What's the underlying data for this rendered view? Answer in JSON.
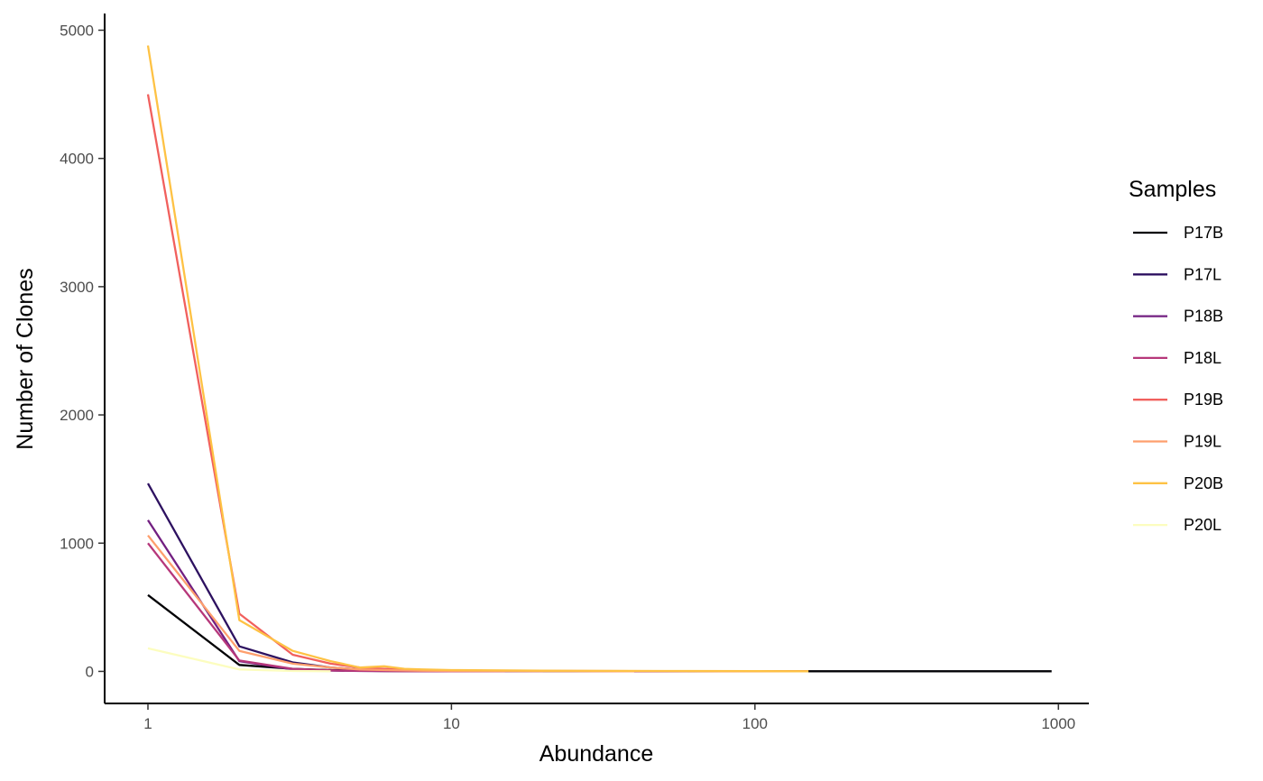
{
  "chart_data": {
    "type": "line",
    "xlabel": "Abundance",
    "ylabel": "Number of Clones",
    "x_scale": "log10",
    "xlim": [
      0.72,
      1260
    ],
    "ylim": [
      -250,
      5130
    ],
    "x_ticks": [
      1,
      10,
      100,
      1000
    ],
    "x_tick_labels": [
      "1",
      "10",
      "100",
      "1000"
    ],
    "y_ticks": [
      0,
      1000,
      2000,
      3000,
      4000,
      5000
    ],
    "y_tick_labels": [
      "0",
      "1000",
      "2000",
      "3000",
      "4000",
      "5000"
    ],
    "grid": false,
    "legend": {
      "title": "Samples",
      "position": "right"
    },
    "series": [
      {
        "name": "P17B",
        "color": "#000004",
        "points": [
          [
            1,
            595
          ],
          [
            2,
            50
          ],
          [
            3,
            20
          ],
          [
            4,
            10
          ],
          [
            5,
            5
          ],
          [
            6,
            3
          ],
          [
            8,
            2
          ],
          [
            10,
            1
          ],
          [
            20,
            1
          ],
          [
            50,
            1
          ],
          [
            100,
            1
          ],
          [
            200,
            1
          ],
          [
            500,
            1
          ],
          [
            950,
            1
          ]
        ]
      },
      {
        "name": "P17L",
        "color": "#2D1160",
        "points": [
          [
            1,
            1465
          ],
          [
            2,
            195
          ],
          [
            3,
            70
          ],
          [
            4,
            30
          ],
          [
            5,
            15
          ],
          [
            6,
            10
          ],
          [
            8,
            5
          ],
          [
            10,
            3
          ],
          [
            20,
            2
          ],
          [
            40,
            1
          ],
          [
            60,
            1
          ]
        ]
      },
      {
        "name": "P18B",
        "color": "#721F81",
        "points": [
          [
            1,
            1180
          ],
          [
            2,
            80
          ],
          [
            3,
            15
          ],
          [
            4,
            6
          ],
          [
            5,
            3
          ],
          [
            7,
            2
          ],
          [
            10,
            1
          ],
          [
            20,
            1
          ]
        ]
      },
      {
        "name": "P18L",
        "color": "#B6377A",
        "points": [
          [
            1,
            1000
          ],
          [
            2,
            85
          ],
          [
            3,
            20
          ],
          [
            4,
            8
          ],
          [
            5,
            4
          ],
          [
            7,
            2
          ],
          [
            10,
            1
          ],
          [
            15,
            1
          ]
        ]
      },
      {
        "name": "P19B",
        "color": "#F1605D",
        "points": [
          [
            1,
            4500
          ],
          [
            2,
            450
          ],
          [
            3,
            130
          ],
          [
            4,
            60
          ],
          [
            5,
            30
          ],
          [
            6,
            20
          ],
          [
            7,
            15
          ],
          [
            8,
            10
          ],
          [
            10,
            7
          ],
          [
            20,
            4
          ],
          [
            40,
            2
          ],
          [
            80,
            1
          ],
          [
            150,
            1
          ]
        ]
      },
      {
        "name": "P19L",
        "color": "#FE9F6D",
        "points": [
          [
            1,
            1060
          ],
          [
            2,
            160
          ],
          [
            3,
            60
          ],
          [
            4,
            30
          ],
          [
            5,
            15
          ],
          [
            6,
            10
          ],
          [
            8,
            5
          ],
          [
            10,
            3
          ],
          [
            20,
            2
          ],
          [
            40,
            1
          ]
        ]
      },
      {
        "name": "P20B",
        "color": "#FEC244",
        "points": [
          [
            1,
            4880
          ],
          [
            2,
            400
          ],
          [
            3,
            160
          ],
          [
            4,
            80
          ],
          [
            5,
            30
          ],
          [
            6,
            40
          ],
          [
            7,
            20
          ],
          [
            8,
            15
          ],
          [
            10,
            10
          ],
          [
            20,
            5
          ],
          [
            50,
            3
          ],
          [
            100,
            2
          ],
          [
            150,
            1
          ]
        ]
      },
      {
        "name": "P20L",
        "color": "#FCFDBF",
        "points": [
          [
            1,
            180
          ],
          [
            2,
            15
          ],
          [
            3,
            3
          ],
          [
            4,
            1
          ]
        ]
      }
    ]
  }
}
